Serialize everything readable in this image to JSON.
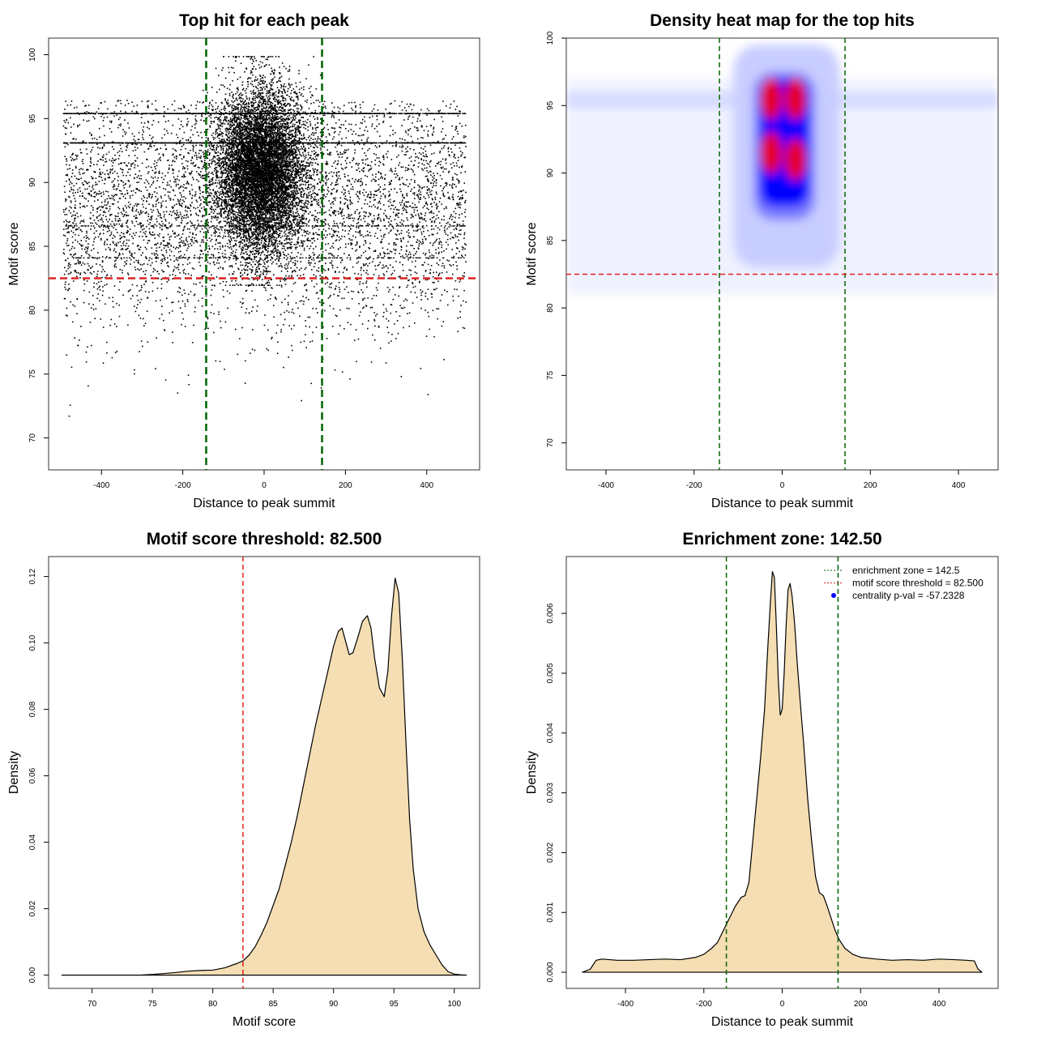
{
  "chart_data": [
    {
      "type": "scatter",
      "title": "Top hit for each peak",
      "xlabel": "Distance to peak summit",
      "ylabel": "Motif score",
      "xlim": [
        -530,
        530
      ],
      "ylim": [
        67.5,
        101.3
      ],
      "xticks": [
        -400,
        -200,
        0,
        200,
        400
      ],
      "yticks": [
        70,
        75,
        80,
        85,
        90,
        95,
        100
      ],
      "vlines": [
        {
          "x": -142.5,
          "color": "#006400",
          "style": "dashed"
        },
        {
          "x": 142.5,
          "color": "#006400",
          "style": "dashed"
        }
      ],
      "hlines": [
        {
          "y": 82.5,
          "color": "#dd2222",
          "style": "dashed"
        }
      ],
      "point_distribution": {
        "x_range": [
          -495,
          495
        ],
        "central_cluster": {
          "x_mean": -10,
          "x_sd": 55,
          "y_mean": 91,
          "y_sd": 3.2
        },
        "background_y_mean": 88,
        "background_y_sd": 4.5,
        "horizontal_bands": [
          95.4,
          93.1,
          86.6,
          84.1
        ],
        "y_range": [
          68.3,
          99.9
        ]
      }
    },
    {
      "type": "heatmap",
      "title": "Density heat map for the top hits",
      "xlabel": "Distance to peak summit",
      "ylabel": "Motif score",
      "xlim": [
        -490,
        490
      ],
      "ylim": [
        68,
        100
      ],
      "xticks": [
        -400,
        -200,
        0,
        200,
        400
      ],
      "yticks": [
        70,
        75,
        80,
        85,
        90,
        95,
        100
      ],
      "colors": [
        "#ffffff",
        "#0000ff",
        "#ff0000"
      ],
      "hotspots": [
        {
          "x": -25,
          "y": 95.5,
          "level": "high"
        },
        {
          "x": 30,
          "y": 95.5,
          "level": "high"
        },
        {
          "x": -25,
          "y": 91.5,
          "level": "high"
        },
        {
          "x": 30,
          "y": 91.0,
          "level": "high"
        }
      ],
      "vlines": [
        {
          "x": -142.5,
          "color": "#006400",
          "style": "dashed"
        },
        {
          "x": 142.5,
          "color": "#006400",
          "style": "dashed"
        }
      ],
      "hlines": [
        {
          "y": 82.5,
          "color": "#dd2222",
          "style": "dashed"
        }
      ]
    },
    {
      "type": "area",
      "title": "Motif score threshold: 82.500",
      "xlabel": "Motif score",
      "ylabel": "Density",
      "xlim": [
        66.4,
        102.1
      ],
      "ylim": [
        -0.004,
        0.126
      ],
      "xticks": [
        70,
        75,
        80,
        85,
        90,
        95,
        100
      ],
      "yticks": [
        "0.00",
        "0.02",
        "0.04",
        "0.06",
        "0.08",
        "0.10",
        "0.12"
      ],
      "fill": "#f5deb3",
      "x": [
        67.5,
        70,
        72,
        74,
        75,
        76,
        77,
        78,
        79,
        80,
        81,
        82,
        82.5,
        83,
        83.5,
        84,
        84.5,
        85,
        85.5,
        86,
        86.5,
        87,
        87.5,
        88,
        88.5,
        89,
        89.5,
        90,
        90.4,
        90.7,
        91,
        91.3,
        91.6,
        92,
        92.4,
        92.8,
        93.1,
        93.4,
        93.8,
        94.2,
        94.5,
        94.8,
        95.1,
        95.4,
        95.7,
        96,
        96.3,
        96.6,
        97,
        97.5,
        98,
        98.5,
        99,
        99.5,
        100,
        100.5,
        101
      ],
      "y": [
        0,
        0,
        0,
        0,
        0.0002,
        0.0005,
        0.0008,
        0.0012,
        0.0014,
        0.0015,
        0.0022,
        0.0035,
        0.0043,
        0.006,
        0.0085,
        0.012,
        0.016,
        0.021,
        0.026,
        0.033,
        0.04,
        0.048,
        0.057,
        0.066,
        0.075,
        0.083,
        0.091,
        0.099,
        0.1035,
        0.1045,
        0.1005,
        0.0965,
        0.097,
        0.1015,
        0.1065,
        0.1082,
        0.1045,
        0.0955,
        0.0865,
        0.0838,
        0.0915,
        0.108,
        0.1195,
        0.115,
        0.095,
        0.07,
        0.047,
        0.032,
        0.02,
        0.013,
        0.009,
        0.006,
        0.003,
        0.001,
        0.0003,
        0.0001,
        0
      ]
    },
    {
      "type": "area",
      "title": "Enrichment zone: 142.50",
      "xlabel": "Distance to peak summit",
      "ylabel": "Density",
      "xlim": [
        -551,
        551
      ],
      "ylim": [
        -0.00027,
        0.00695
      ],
      "xticks": [
        -400,
        -200,
        0,
        200,
        400
      ],
      "yticks": [
        "0.000",
        "0.001",
        "0.002",
        "0.003",
        "0.004",
        "0.005",
        "0.006"
      ],
      "fill": "#f5deb3",
      "x": [
        -510,
        -490,
        -475,
        -460,
        -420,
        -380,
        -340,
        -300,
        -260,
        -220,
        -200,
        -180,
        -165,
        -150,
        -135,
        -120,
        -105,
        -95,
        -85,
        -75,
        -65,
        -55,
        -45,
        -37,
        -30,
        -25,
        -20,
        -15,
        -10,
        -5,
        0,
        5,
        10,
        15,
        20,
        25,
        28,
        32,
        38,
        45,
        55,
        65,
        75,
        85,
        95,
        105,
        115,
        125,
        135,
        145,
        160,
        180,
        200,
        240,
        280,
        320,
        360,
        400,
        440,
        470,
        490,
        500,
        510
      ],
      "y": [
        0,
        5e-05,
        0.0002,
        0.00022,
        0.0002,
        0.0002,
        0.00021,
        0.00022,
        0.00021,
        0.00025,
        0.0003,
        0.0004,
        0.0005,
        0.0007,
        0.0009,
        0.0011,
        0.00125,
        0.00128,
        0.0015,
        0.0022,
        0.0029,
        0.0036,
        0.0044,
        0.0054,
        0.0062,
        0.0067,
        0.0066,
        0.0058,
        0.0049,
        0.0043,
        0.0044,
        0.005,
        0.0058,
        0.0064,
        0.0065,
        0.0063,
        0.0061,
        0.0058,
        0.0052,
        0.0046,
        0.0038,
        0.0029,
        0.0022,
        0.0016,
        0.00133,
        0.00128,
        0.0011,
        0.0009,
        0.0007,
        0.00055,
        0.0004,
        0.0003,
        0.00025,
        0.00022,
        0.0002,
        0.00021,
        0.0002,
        0.00022,
        0.00021,
        0.0002,
        0.00019,
        5e-05,
        0
      ],
      "vlines": [
        {
          "x": -142.5,
          "color": "#006400",
          "style": "dashed"
        },
        {
          "x": 142.5,
          "color": "#006400",
          "style": "dashed"
        }
      ],
      "legend": {
        "position": "top-right",
        "entries": [
          {
            "label": "enrichment zone = 142.5",
            "color": "#006400",
            "kind": "line"
          },
          {
            "label": "motif score threshold = 82.500",
            "color": "#dd2222",
            "kind": "line"
          },
          {
            "label": "centrality p-val = -57.2328",
            "color": "#0000ff",
            "kind": "point"
          }
        ]
      }
    }
  ]
}
